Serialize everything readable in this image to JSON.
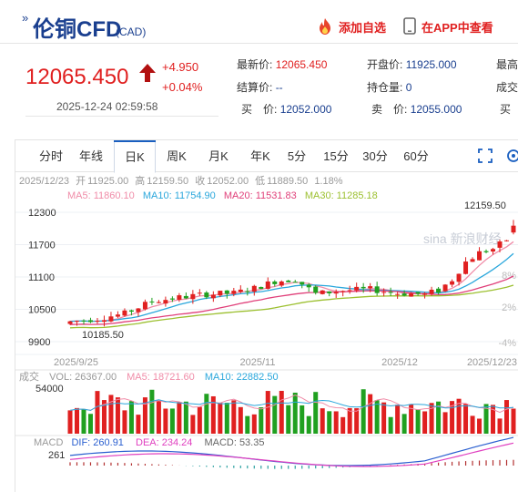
{
  "header": {
    "title_prefix": "»",
    "title": "伦铜CFD",
    "unit": "(CAD)",
    "add_watchlist": "添加自选",
    "open_app": "在APP中查看"
  },
  "quote": {
    "price": "12065.450",
    "change": "+4.950",
    "change_pct": "+0.04%",
    "time": "2025-12-24 02:59:58",
    "stats": [
      {
        "label": "最新价:",
        "value": "12065.450",
        "red": true
      },
      {
        "label": "开盘价:",
        "value": "11925.000",
        "red": false
      },
      {
        "label": "最高",
        "value": "",
        "red": false
      },
      {
        "label": "结算价:",
        "value": "--",
        "red": false
      },
      {
        "label": "持仓量:",
        "value": "0",
        "red": false
      },
      {
        "label": "成交",
        "value": "",
        "red": false
      },
      {
        "label": "买　价:",
        "value": "12052.000",
        "red": false
      },
      {
        "label": "卖　价:",
        "value": "12055.000",
        "red": false
      },
      {
        "label": "买",
        "value": "",
        "red": false
      }
    ]
  },
  "tabs": [
    "分时",
    "年线",
    "日K",
    "周K",
    "月K",
    "年K",
    "5分",
    "15分",
    "30分",
    "60分"
  ],
  "active_tab": 2,
  "chart_info": {
    "date": "2025/12/23",
    "open_label": "开",
    "open": "11925.00",
    "high_label": "高",
    "high": "12159.50",
    "close_label": "收",
    "close": "12052.00",
    "low_label": "低",
    "low": "11889.50",
    "pct": "1.18%",
    "ma5": "MA5: 11860.10",
    "ma10": "MA10: 11754.90",
    "ma20": "MA20: 11531.83",
    "ma30": "MA30: 11285.18",
    "max_label": "12159.50",
    "min_label": "10185.50",
    "vol": "VOL: 26367.00",
    "vol_ma5": "MA5: 18721.60",
    "vol_ma10": "MA10: 22882.50",
    "vol_label": "成交",
    "vol_axis": "54000",
    "macd_label": "MACD",
    "dif": "DIF: 260.91",
    "dea": "DEA: 234.24",
    "macd": "MACD: 53.35",
    "macd_axis": "261",
    "watermark": "sina 新浪财经"
  },
  "chart_data": {
    "type": "candlestick",
    "y_ticks": [
      "12300",
      "11700",
      "11100",
      "10500",
      "9900"
    ],
    "y_tick_values": [
      12300,
      11700,
      11100,
      10500,
      9900
    ],
    "pct_ticks": [
      "8%",
      "2%",
      "-4%"
    ],
    "x_ticks": [
      "2025/9/25",
      "2025/11",
      "2025/12",
      "2025/12/23"
    ],
    "colors": {
      "up": "#e02020",
      "down": "#20a020",
      "ma5": "#f08ca8",
      "ma10": "#2aa7dc",
      "ma20": "#e0407a",
      "ma30": "#9cc030"
    }
  }
}
